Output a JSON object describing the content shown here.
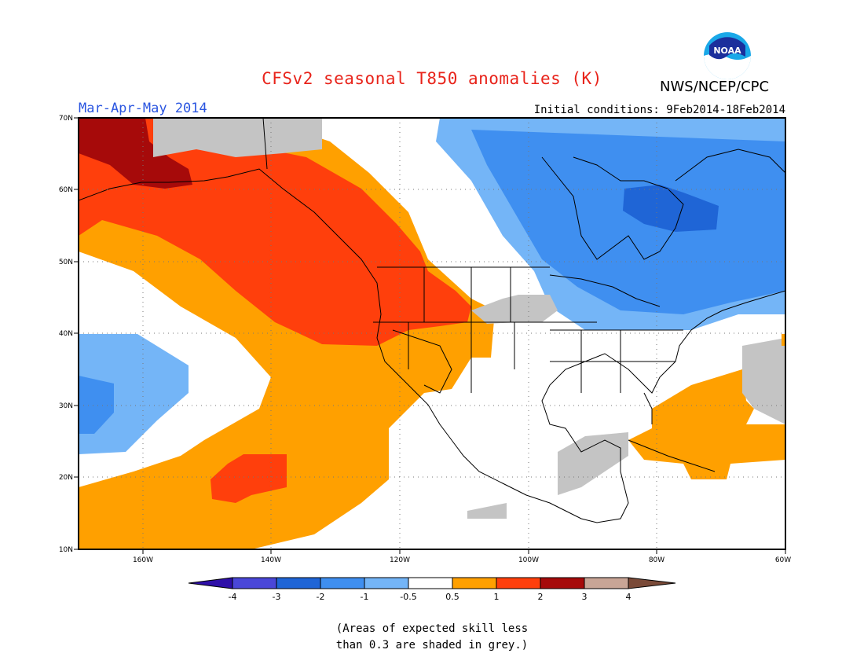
{
  "header": {
    "title": "CFSv2 seasonal T850 anomalies (K)",
    "agency": "NWS/NCEP/CPC",
    "logo_text": "NOAA",
    "season": "Mar-Apr-May 2014",
    "initial_conditions": "Initial conditions: 9Feb2014-18Feb2014"
  },
  "map": {
    "lat_labels": [
      "70N",
      "60N",
      "50N",
      "40N",
      "30N",
      "20N",
      "10N"
    ],
    "lon_labels": [
      "160W",
      "140W",
      "120W",
      "100W",
      "80W",
      "60W"
    ],
    "extent": {
      "lon_min": -170,
      "lon_max": -60,
      "lat_min": 10,
      "lat_max": 70
    }
  },
  "colorbar": {
    "labels": [
      "-4",
      "-3",
      "-2",
      "-1",
      "-0.5",
      "0.5",
      "1",
      "2",
      "3",
      "4"
    ],
    "colors": {
      "lt_neg4": "#2e0fa8",
      "neg4_neg3": "#4a47d8",
      "neg3_neg2": "#1f65d6",
      "neg2_neg1": "#3f8ff0",
      "neg1_neg05": "#74b5f7",
      "neg05_05": "#ffffff",
      "p05_1": "#ffa000",
      "p1_2": "#ff3f0c",
      "p2_3": "#a60a0a",
      "p3_4": "#c8a596",
      "gt_4": "#7a4a38",
      "low_skill_grey": "#c4c4c4"
    }
  },
  "footnote": {
    "line1": "(Areas of expected skill less",
    "line2": "than 0.3 are shaded in grey.)"
  }
}
